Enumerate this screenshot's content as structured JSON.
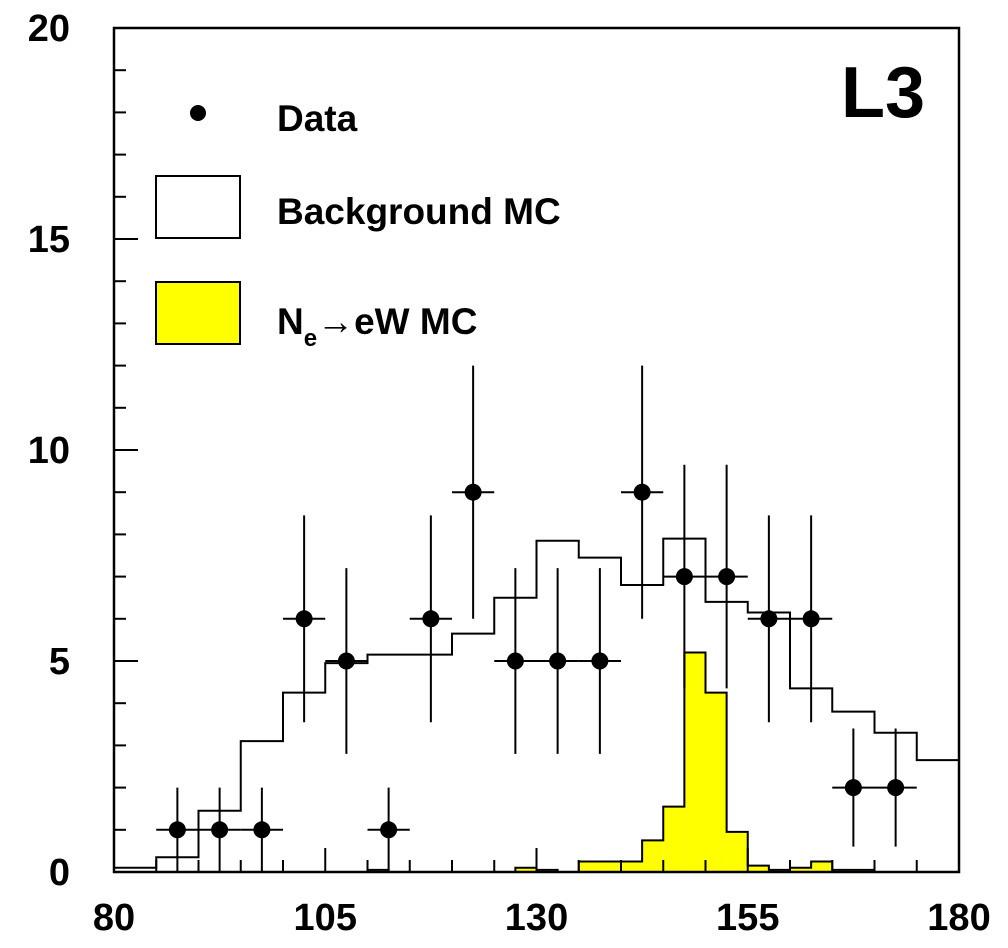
{
  "chart_data": {
    "type": "histogram",
    "experiment_label": "L3",
    "xlim": [
      80,
      180
    ],
    "ylim": [
      0,
      20
    ],
    "x_tick_labels": [
      "80",
      "105",
      "130",
      "155",
      "180"
    ],
    "y_tick_labels": [
      "0",
      "5",
      "10",
      "15",
      "20"
    ],
    "legend": {
      "placement": "top-left",
      "data_label": "Data",
      "background_label": "Background MC",
      "signal_label_main": "N",
      "signal_label_sub": "e",
      "signal_label_rest": "→eW MC"
    },
    "bin_edges": [
      80,
      85,
      90,
      95,
      100,
      105,
      110,
      115,
      120,
      125,
      130,
      135,
      140,
      145,
      150,
      155,
      160,
      165,
      170,
      175,
      180
    ],
    "series": [
      {
        "name": "Background MC",
        "style": "step-outline",
        "values": [
          0.1,
          0.35,
          1.45,
          3.1,
          4.25,
          4.95,
          5.15,
          5.15,
          5.65,
          6.5,
          7.85,
          7.45,
          6.8,
          7.9,
          6.4,
          6.15,
          4.35,
          3.8,
          3.3,
          2.65
        ]
      },
      {
        "name": "Ne→eW MC",
        "style": "filled",
        "color": "#ffff00",
        "edges": [
          80,
          110,
          112.5,
          115,
          117.5,
          120,
          122.5,
          125,
          127.5,
          130,
          132.5,
          135,
          137.5,
          140,
          142.5,
          145,
          147.5,
          150,
          152.5,
          155,
          157.5,
          160,
          162.5,
          165,
          167.5,
          170,
          172.5,
          175,
          177.5,
          180
        ],
        "values": [
          0,
          0.05,
          0,
          0,
          0,
          0,
          0,
          0,
          0.1,
          0.05,
          0,
          0.25,
          0.25,
          0.25,
          0.75,
          1.55,
          5.2,
          4.25,
          0.95,
          0.15,
          0.05,
          0.1,
          0.25,
          0.05,
          0.05,
          0,
          0,
          0,
          0
        ]
      },
      {
        "name": "Data",
        "style": "points-with-errors",
        "x": [
          87.5,
          92.5,
          97.5,
          102.5,
          107.5,
          112.5,
          117.5,
          122.5,
          127.5,
          132.5,
          137.5,
          142.5,
          147.5,
          152.5,
          157.5,
          162.5,
          167.5,
          172.5
        ],
        "y": [
          1,
          1,
          1,
          6,
          5,
          1,
          6,
          9,
          5,
          5,
          5,
          9,
          7,
          7,
          6,
          6,
          2,
          2
        ],
        "x_half_width": 2.5,
        "y_err_low": [
          1,
          1,
          1,
          2.45,
          2.2,
          1,
          2.45,
          3,
          2.2,
          2.2,
          2.2,
          3,
          2.65,
          2.65,
          2.45,
          2.45,
          1.4,
          1.4
        ],
        "y_err_high": [
          1,
          1,
          1,
          2.45,
          2.2,
          1,
          2.45,
          3,
          2.2,
          2.2,
          2.2,
          3,
          2.65,
          2.65,
          2.45,
          2.45,
          1.4,
          1.4
        ]
      }
    ],
    "grid": false
  }
}
